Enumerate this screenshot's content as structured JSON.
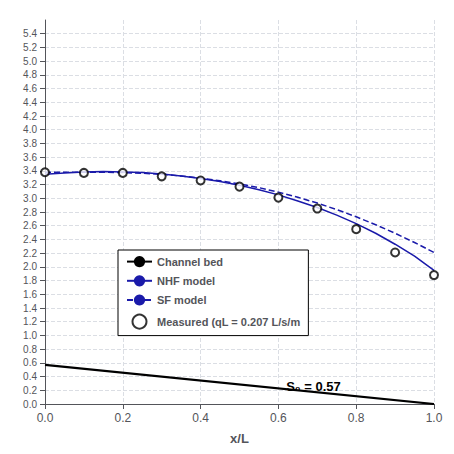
{
  "chart_data": {
    "type": "line",
    "xlabel": "x/L",
    "xlim": [
      0.0,
      1.0
    ],
    "ylim": [
      0.0,
      5.6
    ],
    "xticks": [
      {
        "value": 0.0,
        "label": "0.0"
      },
      0.2,
      0.4,
      0.6,
      0.8,
      {
        "value": 1.0,
        "label": "1.0"
      }
    ],
    "yticks": [
      {
        "value": 0.0,
        "label": "0.0"
      },
      0.2,
      0.4,
      0.6,
      0.8,
      {
        "value": 1.0,
        "label": "1.0"
      },
      1.2,
      1.4,
      1.6,
      1.8,
      {
        "value": 2.0,
        "label": "2.0"
      },
      2.2,
      2.4,
      2.6,
      2.8,
      {
        "value": 3.0,
        "label": "3.0"
      },
      3.2,
      3.4,
      3.6,
      3.8,
      {
        "value": 4.0,
        "label": "4.0"
      },
      4.2,
      4.4,
      4.6,
      4.8,
      {
        "value": 5.0,
        "label": "5.0"
      },
      5.2,
      5.4
    ],
    "grid": true,
    "legend": "center",
    "series": [
      {
        "name": "Channel bed",
        "type": "line",
        "line_style": "solid",
        "color": "#000000",
        "x": [
          0.0,
          1.0
        ],
        "values": [
          0.57,
          0.0
        ]
      },
      {
        "name": "NHF model",
        "type": "line",
        "line_style": "solid",
        "color": "#1a1aaa",
        "x": [
          0.0,
          0.05,
          0.1,
          0.15,
          0.2,
          0.25,
          0.3,
          0.35,
          0.4,
          0.45,
          0.5,
          0.55,
          0.6,
          0.65,
          0.7,
          0.75,
          0.8,
          0.85,
          0.9,
          0.95,
          1.0
        ],
        "values": [
          3.35,
          3.37,
          3.385,
          3.39,
          3.385,
          3.375,
          3.355,
          3.325,
          3.29,
          3.245,
          3.19,
          3.125,
          3.05,
          2.96,
          2.865,
          2.755,
          2.63,
          2.49,
          2.33,
          2.155,
          1.95
        ]
      },
      {
        "name": "SF model",
        "type": "line",
        "line_style": "dashed",
        "color": "#1a1aaa",
        "x": [
          0.0,
          0.05,
          0.1,
          0.15,
          0.2,
          0.25,
          0.3,
          0.35,
          0.4,
          0.45,
          0.5,
          0.55,
          0.6,
          0.65,
          0.7,
          0.75,
          0.8,
          0.85,
          0.9,
          0.95,
          1.0
        ],
        "values": [
          3.38,
          3.38,
          3.38,
          3.38,
          3.375,
          3.365,
          3.35,
          3.325,
          3.295,
          3.255,
          3.21,
          3.155,
          3.09,
          3.015,
          2.93,
          2.835,
          2.73,
          2.615,
          2.49,
          2.355,
          2.21
        ]
      },
      {
        "name": "Measured (qL = 0.207 L/s/m",
        "type": "scatter",
        "marker": "circle",
        "color": "#000000",
        "x": [
          0.0,
          0.1,
          0.2,
          0.3,
          0.4,
          0.5,
          0.6,
          0.7,
          0.8,
          0.9,
          1.0
        ],
        "values": [
          3.38,
          3.37,
          3.37,
          3.32,
          3.26,
          3.17,
          3.01,
          2.85,
          2.55,
          2.21,
          1.88
        ]
      }
    ],
    "annotations": [
      {
        "text": "S₀ = 0.57",
        "x": 0.62,
        "y": 0.25
      }
    ]
  }
}
